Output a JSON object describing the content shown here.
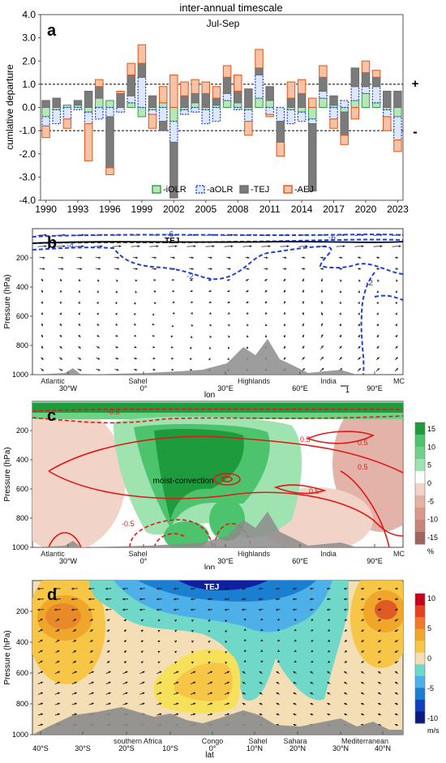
{
  "chart_data": [
    {
      "id": "a",
      "type": "bar",
      "panel_letter": "a",
      "title": "inter-annual timescale",
      "subtitle": "Jul-Sep",
      "ylabel": "cumlative departure",
      "ylim": [
        -4.0,
        4.0
      ],
      "yticks": [
        "-4.0",
        "-3.0",
        "-2.0",
        "-1.0",
        "0.0",
        "1.0",
        "2.0",
        "3.0",
        "4.0"
      ],
      "threshold_marks": {
        "plus": "+",
        "minus": "-"
      },
      "xticks": [
        "1990",
        "1993",
        "1996",
        "1999",
        "2002",
        "2005",
        "2008",
        "2011",
        "2014",
        "2017",
        "2020",
        "2023"
      ],
      "years": [
        1990,
        1991,
        1992,
        1993,
        1994,
        1995,
        1996,
        1997,
        1998,
        1999,
        2000,
        2001,
        2002,
        2003,
        2004,
        2005,
        2006,
        2007,
        2008,
        2009,
        2010,
        2011,
        2012,
        2013,
        2014,
        2015,
        2016,
        2017,
        2018,
        2019,
        2020,
        2021,
        2022,
        2023
      ],
      "series": [
        {
          "name": "-iOLR",
          "color": "#2e9e44",
          "fill": "#b8e6b8",
          "values": [
            -0.4,
            -0.1,
            0.1,
            0.1,
            -0.2,
            0.4,
            0.3,
            0.0,
            0.2,
            -0.4,
            -0.1,
            0.2,
            -0.6,
            -0.1,
            0.2,
            -0.1,
            0.1,
            0.3,
            0.2,
            -0.1,
            0.4,
            0.3,
            0.0,
            -0.1,
            -0.2,
            -0.5,
            0.4,
            0.1,
            -0.2,
            0.3,
            0.6,
            0.2,
            -0.1,
            -0.4
          ]
        },
        {
          "name": "-aOLR",
          "color": "#1f3fd6",
          "fill": "#dde8ff",
          "values": [
            -0.4,
            -0.6,
            -0.5,
            -0.1,
            -0.5,
            -0.5,
            -0.4,
            -0.2,
            0.3,
            1.3,
            -0.2,
            -0.6,
            -0.9,
            -0.2,
            -0.2,
            -0.6,
            -0.6,
            0.3,
            -0.1,
            -0.5,
            1.0,
            -0.3,
            -0.6,
            -0.6,
            -0.4,
            -0.2,
            0.3,
            -0.5,
            0.3,
            0.6,
            0.3,
            0.7,
            -0.3,
            -1.0
          ]
        },
        {
          "name": "-TEJ",
          "color": "#6b6b6b",
          "fill": "#7b7b7b",
          "values": [
            0.3,
            0.4,
            0.0,
            0.2,
            0.7,
            0.5,
            -2.2,
            0.6,
            0.9,
            0.6,
            0.5,
            -0.4,
            -2.4,
            0.5,
            0.4,
            0.6,
            0.3,
            0.7,
            0.5,
            0.8,
            0.3,
            0.6,
            -0.9,
            0.4,
            0.6,
            -2.9,
            0.6,
            0.4,
            -1.0,
            0.8,
            0.6,
            0.4,
            0.7,
            0.7
          ]
        },
        {
          "name": "-AEJ",
          "color": "#e0561c",
          "fill": "#f7c2a6",
          "values": [
            -0.5,
            0.0,
            -0.4,
            0.0,
            -1.6,
            0.3,
            -0.3,
            0.1,
            0.5,
            0.8,
            -0.6,
            0.7,
            1.4,
            0.6,
            0.6,
            0.5,
            0.5,
            0.5,
            0.7,
            -0.6,
            0.8,
            -0.1,
            -0.6,
            0.7,
            0.6,
            0.4,
            0.5,
            -0.4,
            -0.4,
            -0.5,
            0.5,
            0.3,
            -0.6,
            -0.5
          ]
        }
      ]
    },
    {
      "id": "b",
      "type": "vector-section",
      "panel_letter": "b",
      "ylabel": "Pressure (hPa)",
      "xlabel": "lon",
      "ylim": [
        1000,
        100
      ],
      "yticks": [
        "200",
        "400",
        "600",
        "800",
        "1000"
      ],
      "xticks": [
        "30°W",
        "0°",
        "30°E",
        "60°E",
        "90°E"
      ],
      "regions": [
        "Atlantic",
        "Sahel",
        "Highlands",
        "India",
        "MC"
      ],
      "annotations": {
        "jet": "TEJ",
        "contour_labels": [
          "-6",
          "-4",
          "-2",
          "-2",
          "-6"
        ],
        "vector_key": "1"
      }
    },
    {
      "id": "c",
      "type": "heatmap",
      "panel_letter": "c",
      "ylabel": "Pressure (hPa)",
      "xlabel": "lon",
      "ylim": [
        1000,
        100
      ],
      "yticks": [
        "200",
        "400",
        "600",
        "800",
        "1000"
      ],
      "xticks": [
        "30°W",
        "0°",
        "30°E",
        "60°E",
        "90°E"
      ],
      "regions": [
        "Atlantic",
        "Sahel",
        "Highlands",
        "India",
        "MC"
      ],
      "annotations": {
        "feature": "moist-convection",
        "contour_labels": [
          "0.5",
          "0.5",
          "0.5",
          "0.5",
          "-0.5",
          "-0.5"
        ]
      },
      "colorbar": {
        "ticks": [
          "15",
          "10",
          "5",
          "0",
          "-5",
          "-10",
          "-15"
        ],
        "unit": "%"
      }
    },
    {
      "id": "d",
      "type": "heatmap",
      "panel_letter": "d",
      "ylabel": "Pressure (hPa)",
      "xlabel": "lat",
      "ylim": [
        1000,
        100
      ],
      "yticks": [
        "200",
        "400",
        "600",
        "800",
        "1000"
      ],
      "xticks": [
        "40°S",
        "30°S",
        "20°S",
        "10°S",
        "0°",
        "10°N",
        "20°N",
        "30°N",
        "40°N"
      ],
      "regions": [
        "southern Africa",
        "Congo",
        "Sahel",
        "Sahara",
        "Mediterranean"
      ],
      "annotations": {
        "jet": "TEJ"
      },
      "colorbar": {
        "ticks": [
          "10",
          "5",
          "0",
          "-5",
          "-10"
        ],
        "unit": "m/s"
      }
    }
  ],
  "colors": {
    "zonal_pos": "#e8a020",
    "zonal_neg": "#1a7fd0",
    "omega_pos": "#1e9b3c",
    "omega_neg": "#d99a8c",
    "contour_blue": "#1f3fd6",
    "contour_red": "#e01818",
    "terrain": "#8c8c8c"
  }
}
